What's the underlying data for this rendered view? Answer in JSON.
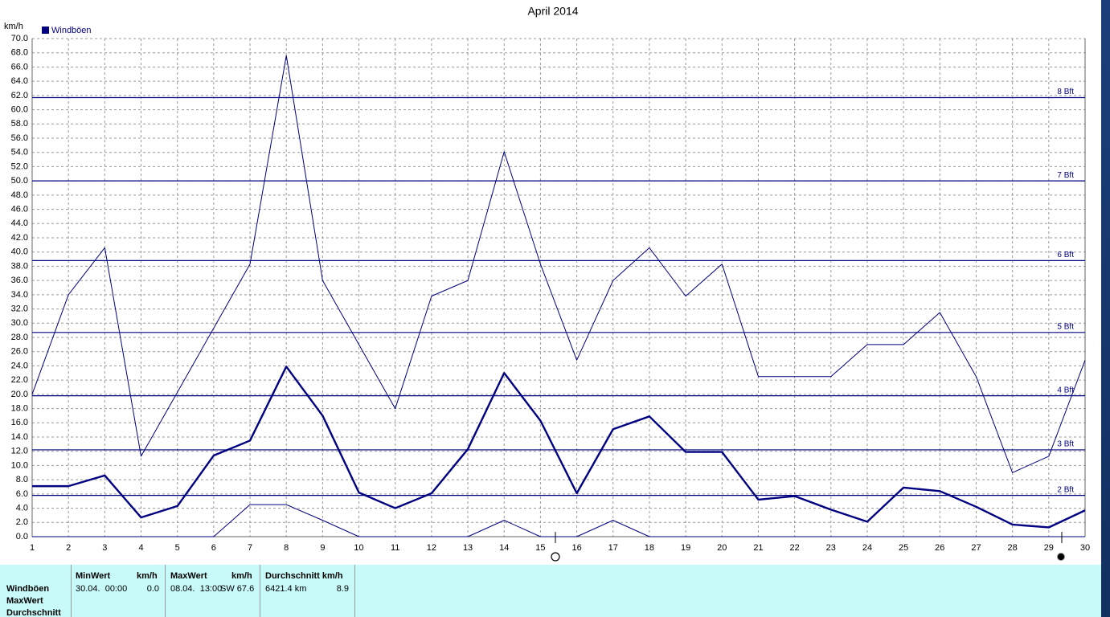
{
  "chart_data": {
    "type": "line",
    "title": "April 2014",
    "y_label": "km/h",
    "legend": "top-left",
    "grid": true,
    "x": [
      1,
      2,
      3,
      4,
      5,
      6,
      7,
      8,
      9,
      10,
      11,
      12,
      13,
      14,
      15,
      16,
      17,
      18,
      19,
      20,
      21,
      22,
      23,
      24,
      25,
      26,
      27,
      28,
      29,
      30
    ],
    "xlim": [
      1,
      30
    ],
    "xticks": [
      1,
      2,
      3,
      4,
      5,
      6,
      7,
      8,
      9,
      10,
      11,
      12,
      13,
      14,
      15,
      16,
      17,
      18,
      19,
      20,
      21,
      22,
      23,
      24,
      25,
      26,
      27,
      28,
      29,
      30
    ],
    "ylim": [
      0,
      70
    ],
    "yticks": [
      {
        "value": 0,
        "label": "0.0"
      },
      {
        "value": 2,
        "label": "2.0"
      },
      {
        "value": 4,
        "label": "4.0"
      },
      {
        "value": 6,
        "label": "6.0"
      },
      {
        "value": 8,
        "label": "8.0"
      },
      {
        "value": 10,
        "label": "10.0"
      },
      {
        "value": 12,
        "label": "12.0"
      },
      {
        "value": 14,
        "label": "14.0"
      },
      {
        "value": 16,
        "label": "16.0"
      },
      {
        "value": 18,
        "label": "18.0"
      },
      {
        "value": 20,
        "label": "20.0"
      },
      {
        "value": 22,
        "label": "22.0"
      },
      {
        "value": 24,
        "label": "24.0"
      },
      {
        "value": 26,
        "label": "26.0"
      },
      {
        "value": 28,
        "label": "28.0"
      },
      {
        "value": 30,
        "label": "30.0"
      },
      {
        "value": 32,
        "label": "32.0"
      },
      {
        "value": 34,
        "label": "34.0"
      },
      {
        "value": 36,
        "label": "36.0"
      },
      {
        "value": 38,
        "label": "38.0"
      },
      {
        "value": 40,
        "label": "40.0"
      },
      {
        "value": 42,
        "label": "42.0"
      },
      {
        "value": 44,
        "label": "44.0"
      },
      {
        "value": 46,
        "label": "46.0"
      },
      {
        "value": 48,
        "label": "48.0"
      },
      {
        "value": 50,
        "label": "50.0"
      },
      {
        "value": 52,
        "label": "52.0"
      },
      {
        "value": 54,
        "label": "54.0"
      },
      {
        "value": 56,
        "label": "56.0"
      },
      {
        "value": 58,
        "label": "58.0"
      },
      {
        "value": 60,
        "label": "60.0"
      },
      {
        "value": 62,
        "label": "62.0"
      },
      {
        "value": 64,
        "label": "64.0"
      },
      {
        "value": 66,
        "label": "66.0"
      },
      {
        "value": 68,
        "label": "68.0"
      },
      {
        "value": 70,
        "label": "70.0"
      }
    ],
    "series": [
      {
        "name": "Windböen",
        "color": "#000080",
        "style": "thick",
        "values": [
          7.1,
          7.1,
          8.6,
          2.7,
          4.3,
          11.4,
          13.5,
          23.9,
          17,
          6.2,
          4,
          6.1,
          12.3,
          23,
          16.3,
          6.1,
          15.1,
          16.9,
          11.9,
          11.9,
          5.2,
          5.7,
          3.8,
          2.1,
          6.9,
          6.4,
          4.2,
          1.7,
          1.3,
          3.7
        ]
      },
      {
        "color": "#000080",
        "style": "thin",
        "values": [
          20,
          34,
          40.6,
          11.3,
          20.3,
          29.3,
          38.3,
          67.6,
          36,
          27,
          18,
          33.8,
          36,
          54.1,
          38.3,
          24.8,
          36,
          40.6,
          33.8,
          38.3,
          22.5,
          22.5,
          22.5,
          27,
          27,
          31.5,
          22.5,
          9,
          11.3,
          24.8
        ]
      },
      {
        "color": "#000080",
        "style": "thin",
        "values": [
          0,
          0,
          0,
          0,
          0,
          0,
          4.5,
          4.5,
          2.3,
          0,
          0,
          0,
          0,
          2.3,
          0,
          0,
          2.3,
          0,
          0,
          0,
          0,
          0,
          0,
          0,
          0,
          0,
          0,
          0,
          0,
          0
        ]
      }
    ],
    "reference_lines": [
      {
        "value": 5.8,
        "label": "2 Bft"
      },
      {
        "value": 12.2,
        "label": "3 Bft"
      },
      {
        "value": 19.8,
        "label": "4 Bft"
      },
      {
        "value": 28.7,
        "label": "5 Bft"
      },
      {
        "value": 38.8,
        "label": "6 Bft"
      },
      {
        "value": 50,
        "label": "7 Bft"
      },
      {
        "value": 61.7,
        "label": "8 Bft"
      }
    ]
  },
  "stats": {
    "columns": [
      [
        "MinWert",
        "km/h"
      ],
      [
        "MaxWert",
        "km/h"
      ],
      [
        "Durchschnitt km/h"
      ]
    ],
    "row_labels": [
      "Windböen",
      "MaxWert",
      "Durchschnitt"
    ],
    "cells": [
      [
        "30.04.  00:00",
        "0.0"
      ],
      [
        "08.04.  13:00",
        "SW 67.6"
      ],
      [
        "6421.4 km",
        "8.9"
      ]
    ]
  }
}
